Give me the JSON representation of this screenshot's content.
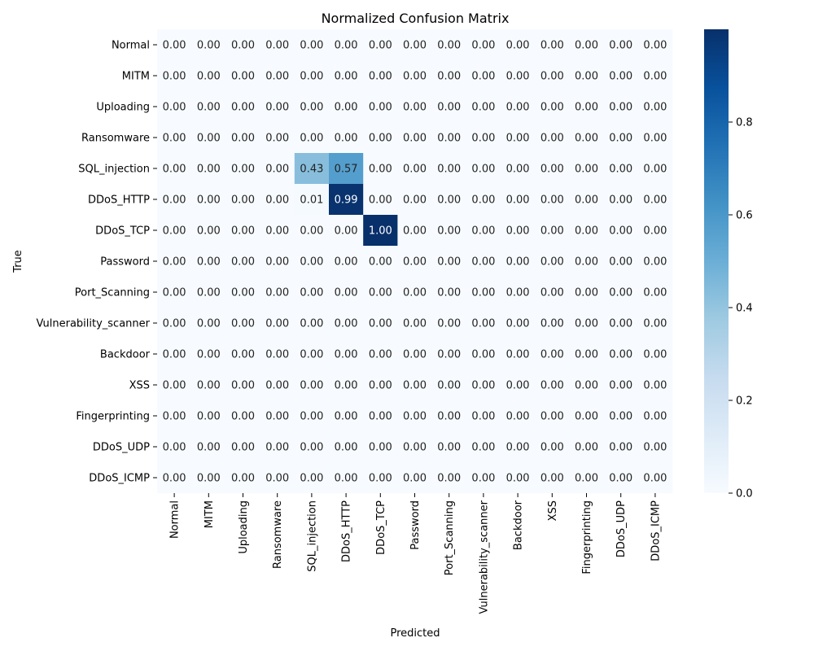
{
  "chart_data": {
    "type": "heatmap",
    "title": "Normalized Confusion Matrix",
    "xlabel": "Predicted",
    "ylabel": "True",
    "row_labels": [
      "Normal",
      "MITM",
      "Uploading",
      "Ransomware",
      "SQL_injection",
      "DDoS_HTTP",
      "DDoS_TCP",
      "Password",
      "Port_Scanning",
      "Vulnerability_scanner",
      "Backdoor",
      "XSS",
      "Fingerprinting",
      "DDoS_UDP",
      "DDoS_ICMP"
    ],
    "col_labels": [
      "Normal",
      "MITM",
      "Uploading",
      "Ransomware",
      "SQL_injection",
      "DDoS_HTTP",
      "DDoS_TCP",
      "Password",
      "Port_Scanning",
      "Vulnerability_scanner",
      "Backdoor",
      "XSS",
      "Fingerprinting",
      "DDoS_UDP",
      "DDoS_ICMP"
    ],
    "values": [
      [
        0,
        0,
        0,
        0,
        0,
        0,
        0,
        0,
        0,
        0,
        0,
        0,
        0,
        0,
        0
      ],
      [
        0,
        0,
        0,
        0,
        0,
        0,
        0,
        0,
        0,
        0,
        0,
        0,
        0,
        0,
        0
      ],
      [
        0,
        0,
        0,
        0,
        0,
        0,
        0,
        0,
        0,
        0,
        0,
        0,
        0,
        0,
        0
      ],
      [
        0,
        0,
        0,
        0,
        0,
        0,
        0,
        0,
        0,
        0,
        0,
        0,
        0,
        0,
        0
      ],
      [
        0,
        0,
        0,
        0,
        0.43,
        0.57,
        0,
        0,
        0,
        0,
        0,
        0,
        0,
        0,
        0
      ],
      [
        0,
        0,
        0,
        0,
        0.01,
        0.99,
        0,
        0,
        0,
        0,
        0,
        0,
        0,
        0,
        0
      ],
      [
        0,
        0,
        0,
        0,
        0,
        0,
        1.0,
        0,
        0,
        0,
        0,
        0,
        0,
        0,
        0
      ],
      [
        0,
        0,
        0,
        0,
        0,
        0,
        0,
        0,
        0,
        0,
        0,
        0,
        0,
        0,
        0
      ],
      [
        0,
        0,
        0,
        0,
        0,
        0,
        0,
        0,
        0,
        0,
        0,
        0,
        0,
        0,
        0
      ],
      [
        0,
        0,
        0,
        0,
        0,
        0,
        0,
        0,
        0,
        0,
        0,
        0,
        0,
        0,
        0
      ],
      [
        0,
        0,
        0,
        0,
        0,
        0,
        0,
        0,
        0,
        0,
        0,
        0,
        0,
        0,
        0
      ],
      [
        0,
        0,
        0,
        0,
        0,
        0,
        0,
        0,
        0,
        0,
        0,
        0,
        0,
        0,
        0
      ],
      [
        0,
        0,
        0,
        0,
        0,
        0,
        0,
        0,
        0,
        0,
        0,
        0,
        0,
        0,
        0
      ],
      [
        0,
        0,
        0,
        0,
        0,
        0,
        0,
        0,
        0,
        0,
        0,
        0,
        0,
        0,
        0
      ],
      [
        0,
        0,
        0,
        0,
        0,
        0,
        0,
        0,
        0,
        0,
        0,
        0,
        0,
        0,
        0
      ]
    ],
    "value_format": "2 decimals",
    "colormap": "Blues",
    "color_range": [
      0,
      1
    ],
    "colorbar_ticks": [
      "0.0",
      "0.2",
      "0.4",
      "0.6",
      "0.8"
    ],
    "colorbar_tick_values": [
      0,
      0.2,
      0.4,
      0.6,
      0.8
    ],
    "grid": false,
    "legend": "colorbar-right"
  }
}
